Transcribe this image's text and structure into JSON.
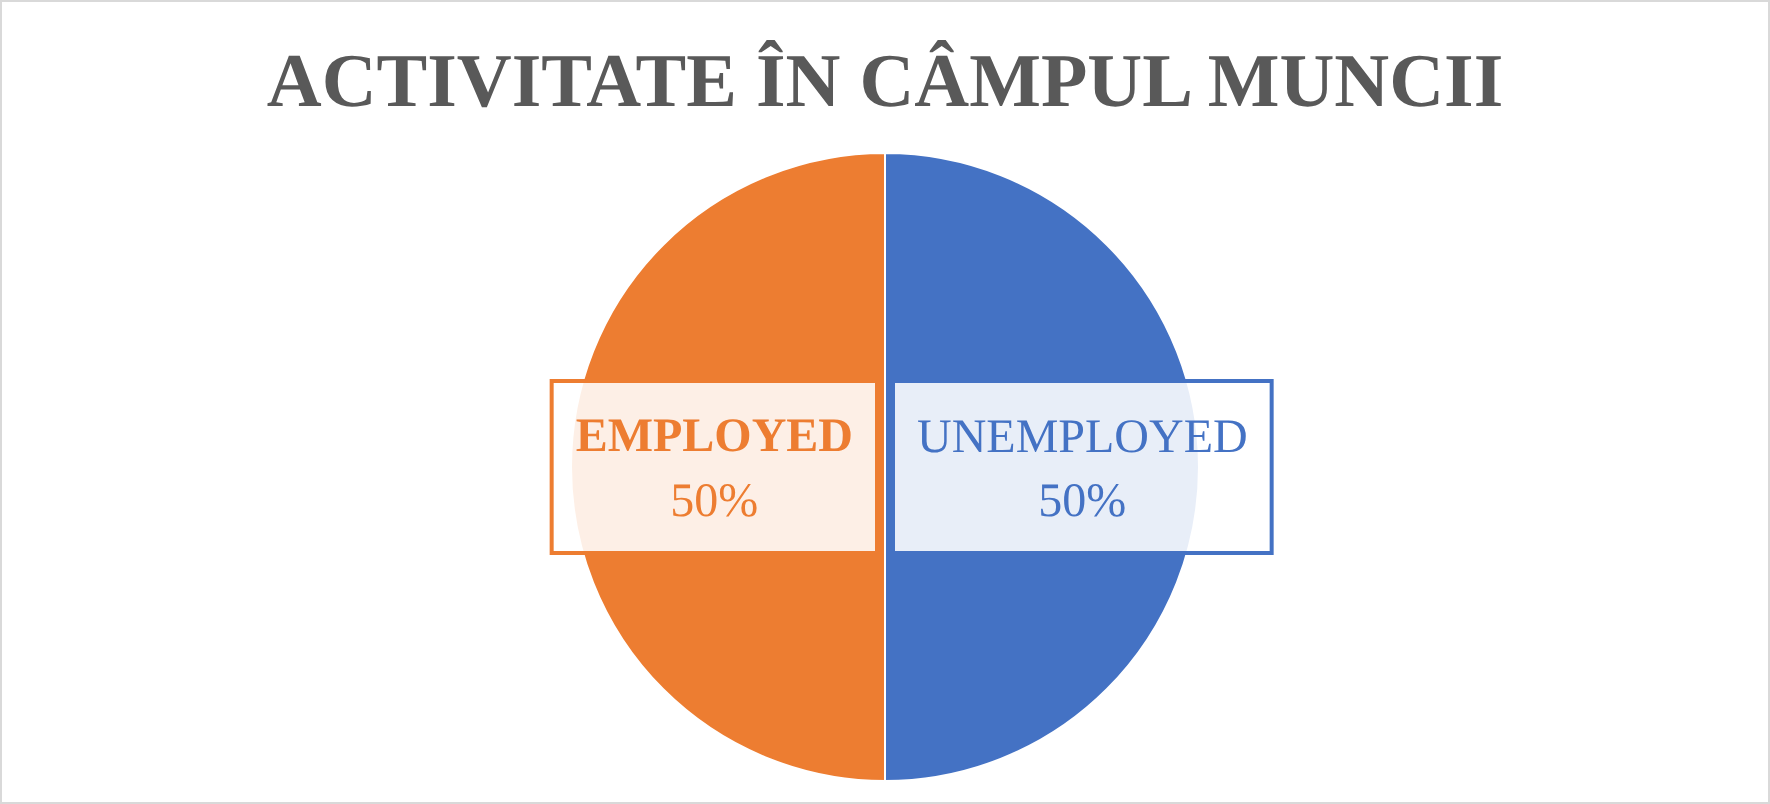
{
  "chart_data": {
    "type": "pie",
    "title": "ACTIVITATE ÎN CÂMPUL MUNCII",
    "categories": [
      "UNEMPLOYED",
      "EMPLOYED"
    ],
    "values": [
      50,
      50
    ],
    "colors": [
      "#4472c4",
      "#ed7d31"
    ],
    "value_labels": [
      "50%",
      "50%"
    ],
    "legend": false
  }
}
